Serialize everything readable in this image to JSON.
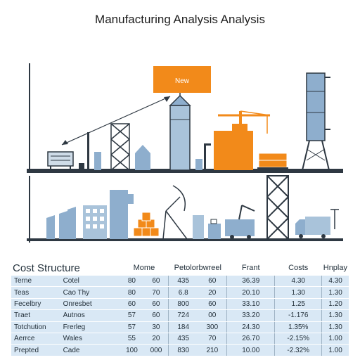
{
  "title": "Manufacturing Analysis Analysis",
  "scene": {
    "sign_label": "New"
  },
  "colors": {
    "steel": "#8eaecd",
    "orange": "#f28a1a",
    "dark": "#2e3842"
  },
  "cost_structure": {
    "title": "Cost Structure",
    "headers": [
      "Mome",
      "Petolorbwreel",
      "Frant",
      "Costs",
      "Hnplay"
    ],
    "rows": [
      {
        "c1": "Terne",
        "c2": "Cotel",
        "c3": "80",
        "c4": "60",
        "c5": "435",
        "c6": "60",
        "c7": "36.39",
        "c8": "4.30",
        "c9": "4.30"
      },
      {
        "c1": "Teas",
        "c2": "Cao Thy",
        "c3": "80",
        "c4": "70",
        "c5": "6.8",
        "c6": "20",
        "c7": "20.10",
        "c8": "1.30",
        "c9": "1.30"
      },
      {
        "c1": "Fecelbry",
        "c2": "Onresbet",
        "c3": "60",
        "c4": "60",
        "c5": "800",
        "c6": "60",
        "c7": "33.10",
        "c8": "1.25",
        "c9": "1.20"
      },
      {
        "c1": "Traet",
        "c2": "Autnos",
        "c3": "57",
        "c4": "60",
        "c5": "724",
        "c6": "00",
        "c7": "33.20",
        "c8": "-1.176",
        "c9": "1.30"
      },
      {
        "c1": "Totchution",
        "c2": "Frerleg",
        "c3": "57",
        "c4": "30",
        "c5": "184",
        "c6": "300",
        "c7": "24.30",
        "c8": "1.35%",
        "c9": "1.30"
      },
      {
        "c1": "Aerrce",
        "c2": "Wales",
        "c3": "55",
        "c4": "20",
        "c5": "435",
        "c6": "70",
        "c7": "26.70",
        "c8": "-2.15%",
        "c9": "1.00"
      },
      {
        "c1": "Prepted",
        "c2": "Cade",
        "c3": "100",
        "c4": "000",
        "c5": "830",
        "c6": "210",
        "c7": "10.00",
        "c8": "-2.32%",
        "c9": "1.00"
      }
    ]
  }
}
